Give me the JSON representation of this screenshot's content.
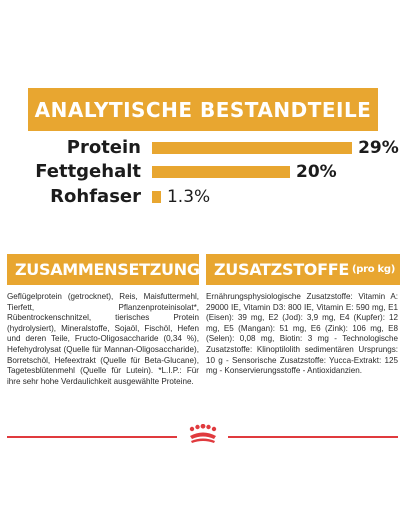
{
  "analysis": {
    "title": "ANALYTISCHE BESTANDTEILE",
    "rows": [
      {
        "label": "Protein",
        "value_text": "29%",
        "value": 29
      },
      {
        "label": "Fettgehalt",
        "value_text": "20%",
        "value": 20
      },
      {
        "label": "Rohfaser",
        "value_text": "1.3%",
        "value": 1.3
      }
    ]
  },
  "composition": {
    "title": "ZUSAMMENSETZUNG",
    "text": "Geflügelprotein (getrocknet), Reis, Maisfuttermehl, Tierfett, Pflanzenproteinisolat*, Rübentrockenschnitzel, tierisches Protein (hydrolysiert), Mineralstoffe, Sojaöl, Fischöl, Hefen und deren Teile, Fructo-Oligosaccharide (0,34 %), Hefehydrolysat (Quelle für Mannan-Oligosaccharide), Borretschöl, Hefeextrakt (Quelle für Beta-Glucane), Tagetesblütenmehl (Quelle für Lutein). *L.I.P.: Für ihre sehr hohe Verdaulichkeit ausgewählte Proteine."
  },
  "additives": {
    "title": "ZUSATZSTOFFE",
    "title_suffix": "(pro kg)",
    "text": "Ernährungsphysiologische Zusatzstoffe: Vitamin A: 29000 IE, Vitamin D3: 800 IE, Vitamin E: 590 mg, E1 (Eisen): 39 mg, E2 (Jod): 3,9 mg, E4 (Kupfer): 12 mg, E5 (Mangan): 51 mg, E6 (Zink): 106 mg, E8 (Selen): 0,08 mg, Biotin: 3 mg - Technologische Zusatzstoffe: Klinoptilolith sedimentären Ursprungs: 10 g - Sensorische Zusatzstoffe: Yucca-Extrakt: 125 mg - Konservierungsstoffe - Antioxidanzien."
  },
  "colors": {
    "accent": "#e8a630",
    "brand_red": "#e03a3e"
  },
  "icons": {
    "brand": "royal-canin-crown-icon"
  }
}
